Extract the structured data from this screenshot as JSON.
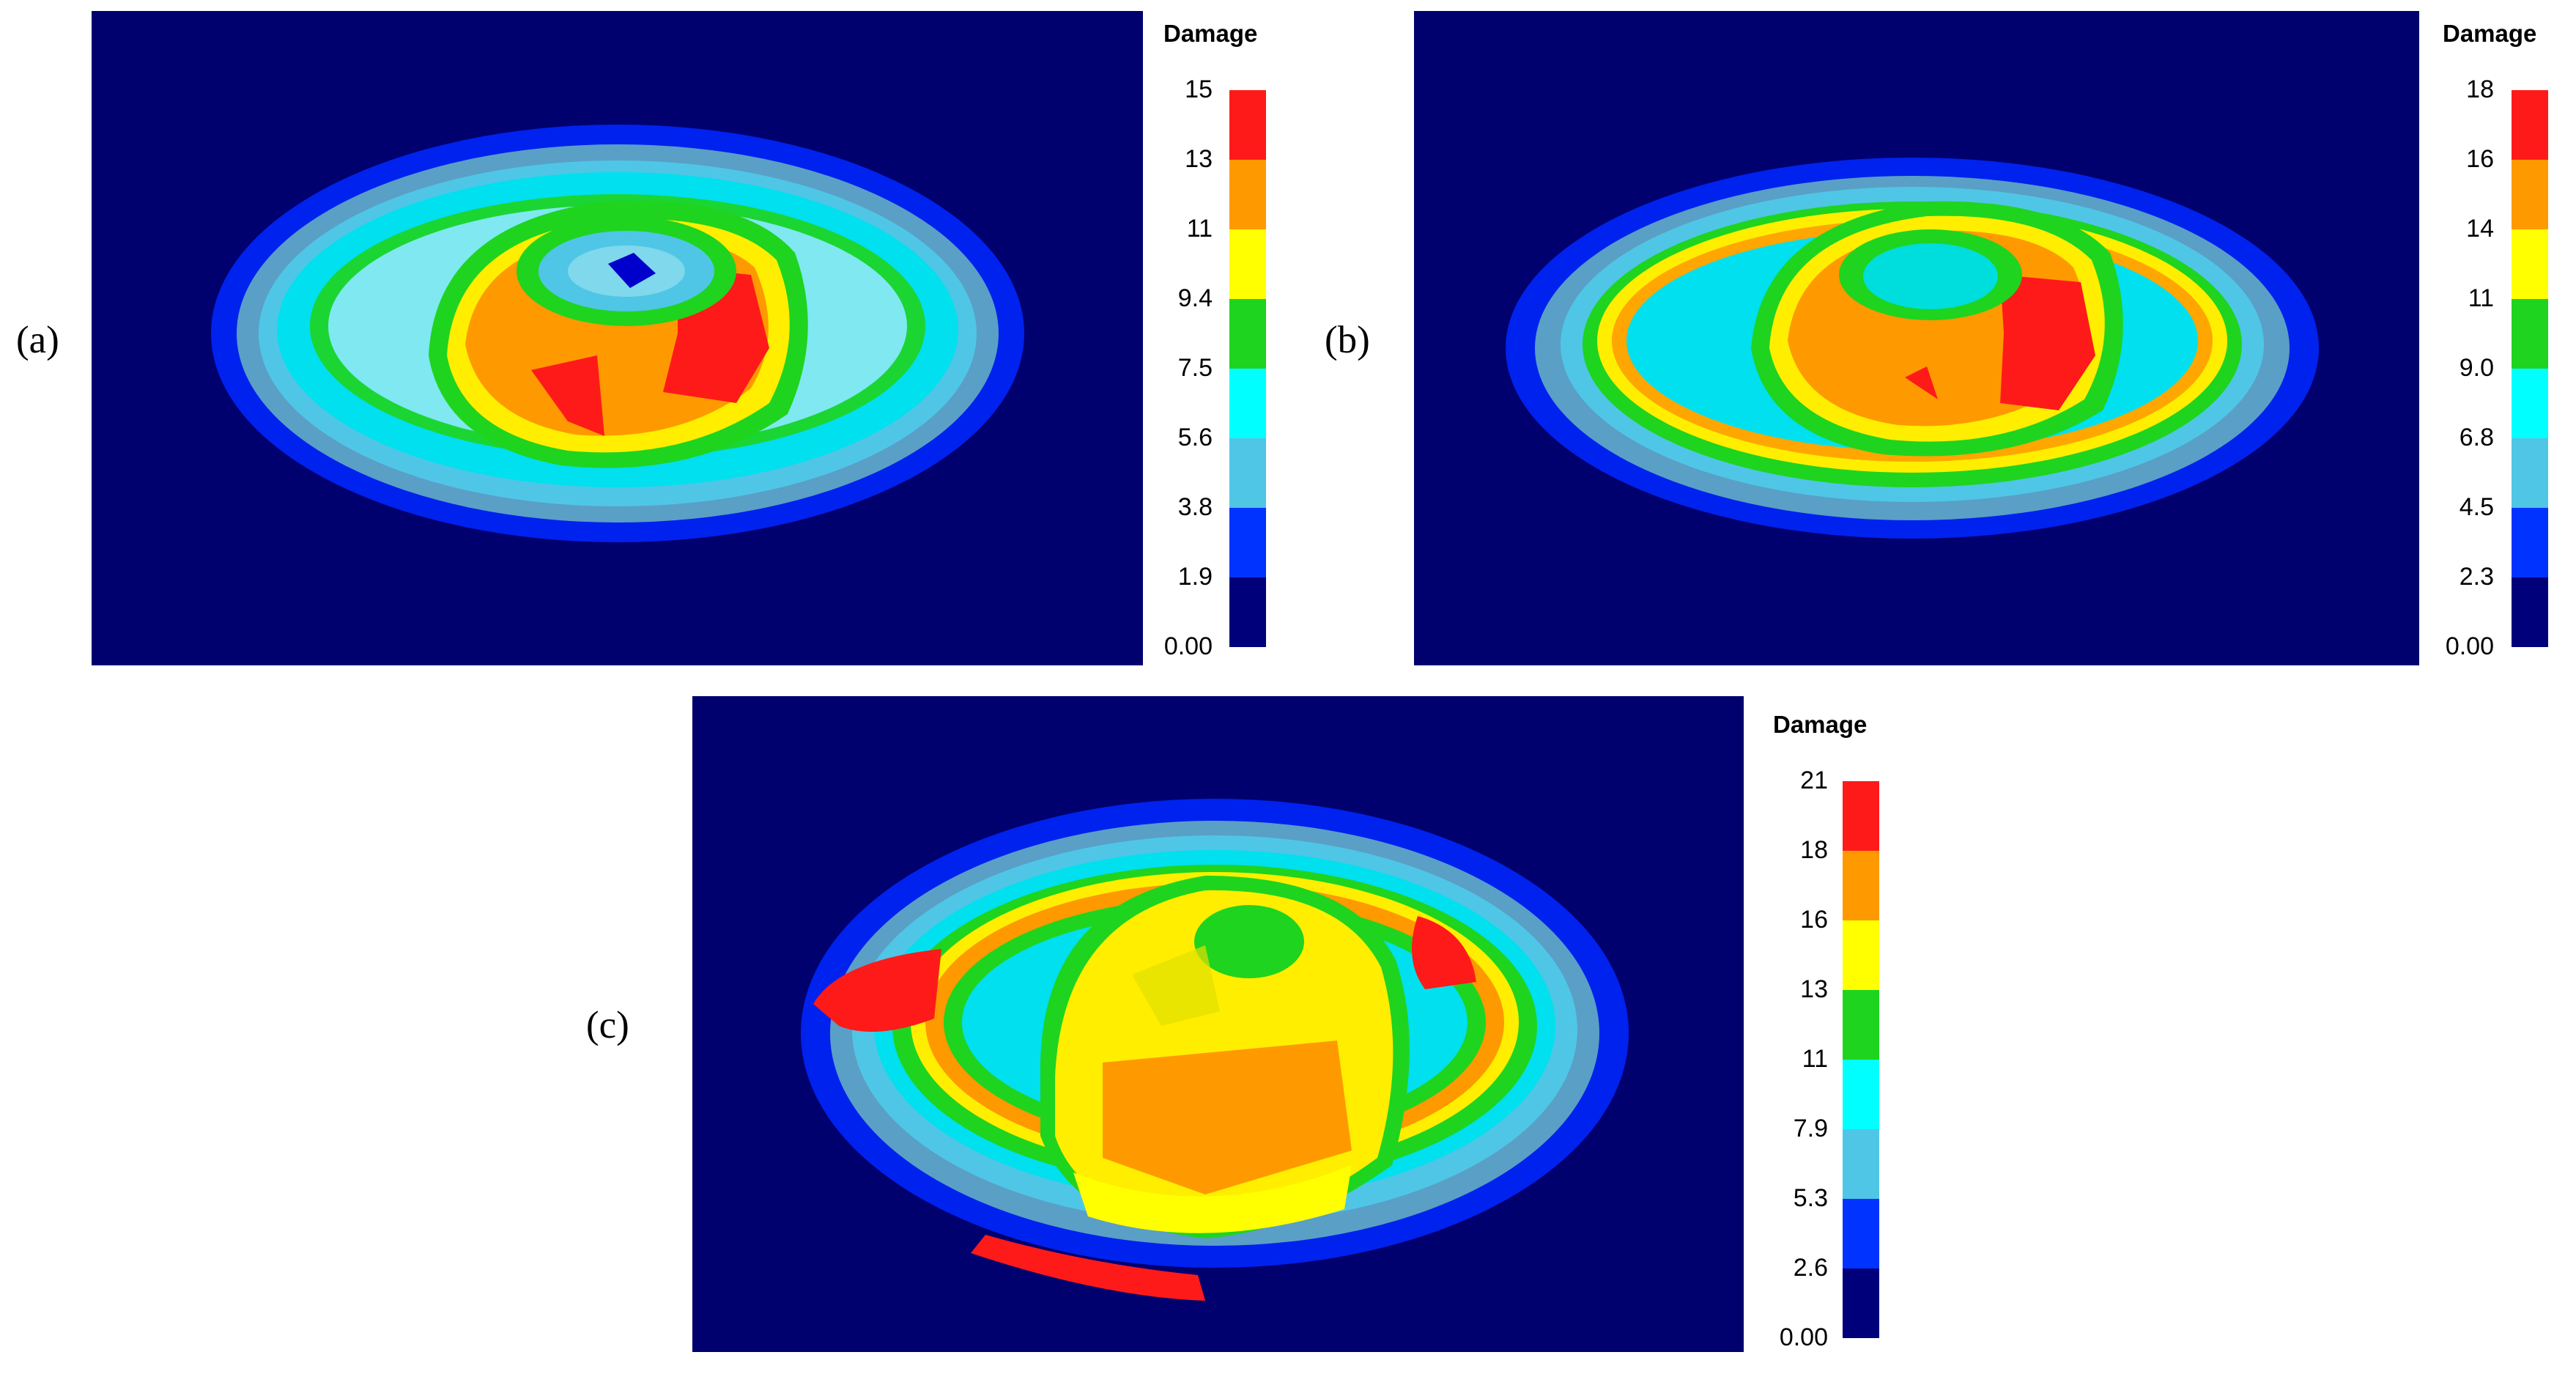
{
  "figure": {
    "panels": [
      {
        "id": "a",
        "label": "(a)",
        "colorbar": {
          "title": "Damage",
          "ticks": [
            "15",
            "13",
            "11",
            "9.4",
            "7.5",
            "5.6",
            "3.8",
            "1.9",
            "0.00"
          ]
        }
      },
      {
        "id": "b",
        "label": "(b)",
        "colorbar": {
          "title": "Damage",
          "ticks": [
            "18",
            "16",
            "14",
            "11",
            "9.0",
            "6.8",
            "4.5",
            "2.3",
            "0.00"
          ]
        }
      },
      {
        "id": "c",
        "label": "(c)",
        "colorbar": {
          "title": "Damage",
          "ticks": [
            "21",
            "18",
            "16",
            "13",
            "11",
            "7.9",
            "5.3",
            "2.6",
            "0.00"
          ]
        }
      }
    ],
    "palette": {
      "top_to_bottom": [
        "#ff1a1a",
        "#ff9900",
        "#ffff00",
        "#1ed41e",
        "#00ffff",
        "#4fc6e6",
        "#0033ff",
        "#00007a"
      ],
      "background": "#00006e",
      "ring_steel": "#5a9fc6"
    }
  }
}
